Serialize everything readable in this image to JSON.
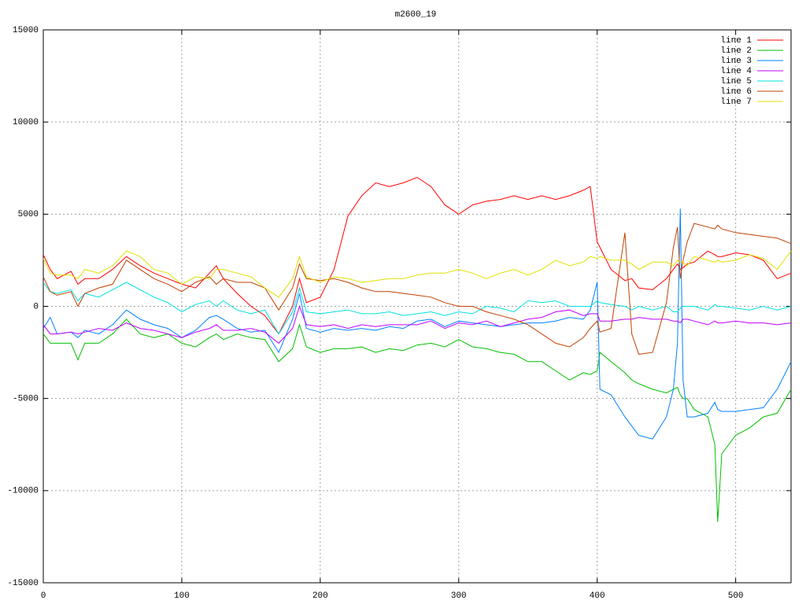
{
  "chart_data": {
    "type": "line",
    "title": "m2600_19",
    "x": [
      0,
      5,
      10,
      20,
      25,
      30,
      40,
      50,
      60,
      70,
      80,
      90,
      100,
      110,
      120,
      125,
      130,
      140,
      150,
      160,
      170,
      180,
      185,
      190,
      200,
      210,
      220,
      230,
      240,
      250,
      260,
      270,
      280,
      290,
      300,
      310,
      320,
      330,
      340,
      350,
      360,
      370,
      380,
      390,
      395,
      400,
      402,
      410,
      420,
      425,
      430,
      440,
      450,
      455,
      458,
      460,
      462,
      465,
      470,
      480,
      485,
      487,
      490,
      500,
      510,
      520,
      530,
      540
    ],
    "series": [
      {
        "name": "line 1",
        "color": "#ff0000",
        "values": [
          2800,
          2000,
          1500,
          1900,
          1200,
          1500,
          1500,
          2000,
          2700,
          2200,
          1800,
          1500,
          1200,
          1000,
          1800,
          2200,
          1500,
          700,
          0,
          -500,
          -1500,
          0,
          1500,
          200,
          500,
          2000,
          4900,
          6000,
          6700,
          6500,
          6700,
          7000,
          6500,
          5500,
          5000,
          5500,
          5700,
          5800,
          6000,
          5800,
          6000,
          5800,
          6000,
          6300,
          6500,
          3500,
          3200,
          2000,
          1400,
          1500,
          1000,
          900,
          1500,
          2000,
          2300,
          2000,
          2100,
          2300,
          2400,
          3000,
          2800,
          2700,
          2700,
          2900,
          2800,
          2500,
          1500,
          1800
        ]
      },
      {
        "name": "line 2",
        "color": "#00c000",
        "values": [
          -1500,
          -2000,
          -2000,
          -2000,
          -2900,
          -2000,
          -2000,
          -1500,
          -700,
          -1500,
          -1700,
          -1500,
          -2000,
          -2200,
          -1700,
          -1500,
          -1800,
          -1500,
          -1700,
          -1800,
          -3000,
          -2300,
          -1000,
          -2200,
          -2500,
          -2300,
          -2300,
          -2200,
          -2500,
          -2300,
          -2400,
          -2100,
          -2000,
          -2200,
          -1800,
          -2200,
          -2300,
          -2500,
          -2600,
          -3000,
          -3000,
          -3500,
          -4000,
          -3600,
          -3700,
          -3500,
          -2500,
          -3000,
          -3600,
          -4000,
          -4200,
          -4500,
          -4700,
          -4500,
          -4400,
          -4800,
          -5000,
          -5000,
          -5600,
          -6000,
          -7500,
          -11700,
          -8000,
          -7000,
          -6600,
          -6000,
          -5800,
          -4500
        ]
      },
      {
        "name": "line 3",
        "color": "#0080ff",
        "values": [
          -1200,
          -600,
          -1500,
          -1400,
          -1700,
          -1300,
          -1500,
          -1000,
          -200,
          -700,
          -1000,
          -1200,
          -1700,
          -1300,
          -600,
          -500,
          -700,
          -1200,
          -1400,
          -1300,
          -2500,
          -700,
          700,
          -1200,
          -1400,
          -1200,
          -1300,
          -1200,
          -1300,
          -1100,
          -1200,
          -800,
          -700,
          -1100,
          -800,
          -900,
          -1000,
          -1100,
          -1000,
          -900,
          -900,
          -800,
          -600,
          -700,
          -200,
          1300,
          -4500,
          -4800,
          -6000,
          -6500,
          -7000,
          -7200,
          -6000,
          -4500,
          -2000,
          5300,
          -4000,
          -6000,
          -6000,
          -5800,
          -5200,
          -5600,
          -5700,
          -5700,
          -5600,
          -5500,
          -4500,
          -3000
        ]
      },
      {
        "name": "line 4",
        "color": "#c000ff",
        "values": [
          -1000,
          -1500,
          -1500,
          -1400,
          -1500,
          -1400,
          -1200,
          -1300,
          -900,
          -1200,
          -1300,
          -1500,
          -1700,
          -1400,
          -1200,
          -1000,
          -1300,
          -1300,
          -1200,
          -1400,
          -2000,
          -1200,
          0,
          -1000,
          -1100,
          -1000,
          -1200,
          -1000,
          -1100,
          -1000,
          -1000,
          -1000,
          -800,
          -1200,
          -900,
          -1000,
          -800,
          -1100,
          -900,
          -700,
          -600,
          -300,
          -200,
          -500,
          -400,
          -400,
          -800,
          -800,
          -700,
          -700,
          -600,
          -700,
          -700,
          -800,
          -800,
          -900,
          -700,
          -700,
          -800,
          -1000,
          -800,
          -900,
          -900,
          -800,
          -900,
          -900,
          -1000,
          -900
        ]
      },
      {
        "name": "line 5",
        "color": "#00e0e0",
        "values": [
          1300,
          800,
          700,
          900,
          300,
          700,
          500,
          900,
          1300,
          900,
          500,
          200,
          -300,
          100,
          300,
          0,
          300,
          -200,
          -400,
          -200,
          -1500,
          -300,
          1000,
          -300,
          -400,
          -300,
          -200,
          -400,
          -400,
          -300,
          -500,
          -400,
          -300,
          -500,
          -300,
          -400,
          0,
          -100,
          -300,
          300,
          200,
          300,
          0,
          0,
          0,
          300,
          200,
          100,
          0,
          -200,
          0,
          -200,
          0,
          -300,
          -300,
          -100,
          0,
          0,
          0,
          -200,
          100,
          0,
          0,
          -100,
          -200,
          0,
          -200,
          0
        ]
      },
      {
        "name": "line 6",
        "color": "#c04000",
        "values": [
          1600,
          800,
          600,
          800,
          0,
          700,
          1000,
          1200,
          2500,
          2000,
          1500,
          1200,
          800,
          1300,
          1600,
          1200,
          1500,
          1300,
          1300,
          1000,
          -200,
          1000,
          2300,
          1500,
          1400,
          1500,
          1300,
          1000,
          800,
          800,
          700,
          600,
          500,
          200,
          0,
          0,
          -300,
          -500,
          -700,
          -1000,
          -1500,
          -2000,
          -2200,
          -1700,
          -1200,
          -800,
          -1400,
          -1200,
          4000,
          -1500,
          -2600,
          -2500,
          200,
          3200,
          4300,
          1500,
          2500,
          3500,
          4500,
          4300,
          4200,
          4400,
          4200,
          4000,
          3900,
          3800,
          3700,
          3400
        ]
      },
      {
        "name": "line 7",
        "color": "#e0e000",
        "values": [
          2600,
          1800,
          1700,
          1700,
          1500,
          2000,
          1800,
          2200,
          3000,
          2700,
          2000,
          1800,
          1200,
          1600,
          1500,
          2000,
          2000,
          1800,
          1600,
          1000,
          500,
          1500,
          2700,
          1600,
          1300,
          1600,
          1500,
          1300,
          1400,
          1500,
          1500,
          1700,
          1800,
          1800,
          2000,
          1800,
          1500,
          1800,
          2000,
          1700,
          2000,
          2500,
          2200,
          2400,
          2700,
          2600,
          2700,
          2500,
          2500,
          2300,
          2000,
          2400,
          2400,
          2200,
          2500,
          2400,
          2400,
          2200,
          2700,
          2500,
          2400,
          2500,
          2400,
          2500,
          2800,
          2600,
          2000,
          3000
        ]
      }
    ],
    "xlim": [
      0,
      540
    ],
    "xticks": [
      0,
      100,
      200,
      300,
      400,
      500
    ],
    "ylim": [
      -15000,
      15000
    ],
    "yticks": [
      -15000,
      -10000,
      -5000,
      0,
      5000,
      10000,
      15000
    ],
    "grid": true,
    "legend": "top-right"
  }
}
